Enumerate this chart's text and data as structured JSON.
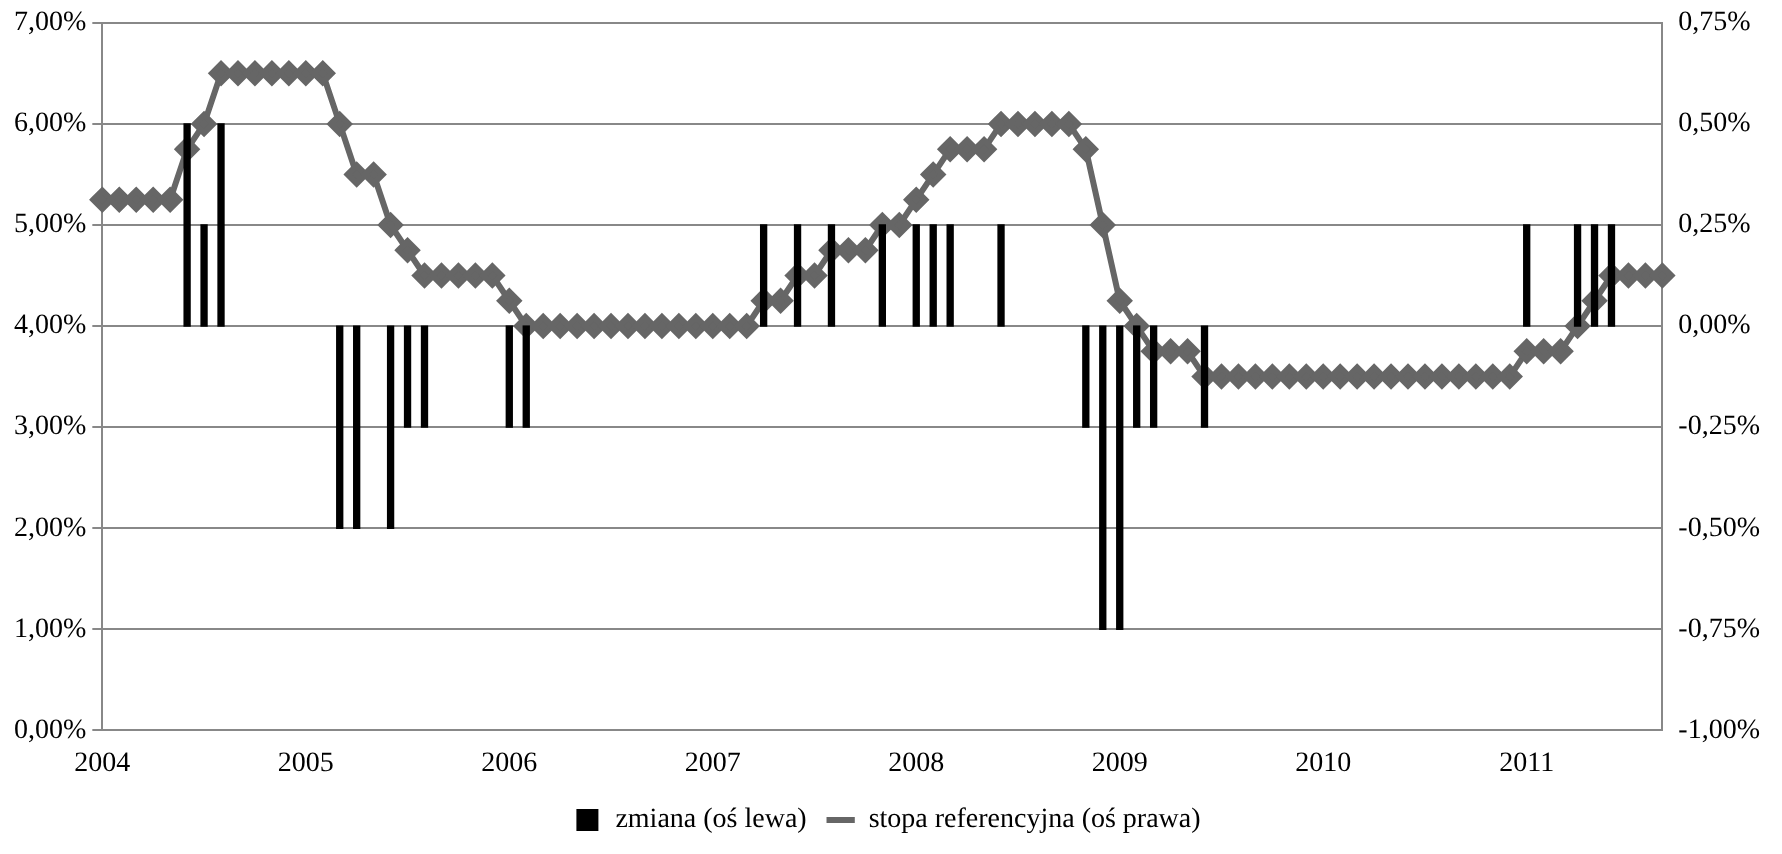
{
  "chart_data": {
    "type": "bar",
    "categories": [
      "2004",
      null,
      null,
      null,
      null,
      null,
      null,
      null,
      null,
      null,
      null,
      null,
      "2005",
      null,
      null,
      null,
      null,
      null,
      null,
      null,
      null,
      null,
      null,
      null,
      "2006",
      null,
      null,
      null,
      null,
      null,
      null,
      null,
      null,
      null,
      null,
      null,
      "2007",
      null,
      null,
      null,
      null,
      null,
      null,
      null,
      null,
      null,
      null,
      null,
      "2008",
      null,
      null,
      null,
      null,
      null,
      null,
      null,
      null,
      null,
      null,
      null,
      "2009",
      null,
      null,
      null,
      null,
      null,
      null,
      null,
      null,
      null,
      null,
      null,
      "2010",
      null,
      null,
      null,
      null,
      null,
      null,
      null,
      null,
      null,
      null,
      null,
      "2011",
      null,
      null,
      null,
      null,
      null,
      null,
      null,
      null
    ],
    "series": [
      {
        "name": "zmiana (oś lewa)",
        "axis": "y2",
        "color": "#000000",
        "values": [
          null,
          null,
          null,
          null,
          null,
          0.5,
          0.25,
          0.5,
          null,
          null,
          null,
          null,
          null,
          null,
          -0.5,
          -0.5,
          null,
          -0.5,
          -0.25,
          -0.25,
          null,
          null,
          null,
          null,
          -0.25,
          -0.25,
          null,
          null,
          null,
          null,
          null,
          null,
          null,
          null,
          null,
          null,
          null,
          null,
          null,
          0.25,
          null,
          0.25,
          null,
          0.25,
          null,
          null,
          0.25,
          null,
          0.25,
          0.25,
          0.25,
          null,
          null,
          0.25,
          null,
          null,
          null,
          null,
          -0.25,
          -0.75,
          -0.75,
          -0.25,
          -0.25,
          null,
          null,
          -0.25,
          null,
          null,
          null,
          null,
          null,
          null,
          null,
          null,
          null,
          null,
          null,
          null,
          null,
          null,
          null,
          null,
          null,
          null,
          0.25,
          null,
          null,
          0.25,
          0.25,
          0.25,
          null,
          null,
          null
        ]
      },
      {
        "name": "stopa referencyjna (oś prawa)",
        "type": "line",
        "axis": "y",
        "color": "#666666",
        "marker": "diamond",
        "values": [
          5.25,
          5.25,
          5.25,
          5.25,
          5.25,
          5.75,
          6.0,
          6.5,
          6.5,
          6.5,
          6.5,
          6.5,
          6.5,
          6.5,
          6.0,
          5.5,
          5.5,
          5.0,
          4.75,
          4.5,
          4.5,
          4.5,
          4.5,
          4.5,
          4.25,
          4.0,
          4.0,
          4.0,
          4.0,
          4.0,
          4.0,
          4.0,
          4.0,
          4.0,
          4.0,
          4.0,
          4.0,
          4.0,
          4.0,
          4.25,
          4.25,
          4.5,
          4.5,
          4.75,
          4.75,
          4.75,
          5.0,
          5.0,
          5.25,
          5.5,
          5.75,
          5.75,
          5.75,
          6.0,
          6.0,
          6.0,
          6.0,
          6.0,
          5.75,
          5.0,
          4.25,
          4.0,
          3.75,
          3.75,
          3.75,
          3.5,
          3.5,
          3.5,
          3.5,
          3.5,
          3.5,
          3.5,
          3.5,
          3.5,
          3.5,
          3.5,
          3.5,
          3.5,
          3.5,
          3.5,
          3.5,
          3.5,
          3.5,
          3.5,
          3.75,
          3.75,
          3.75,
          4.0,
          4.25,
          4.5,
          4.5,
          4.5,
          4.5
        ]
      }
    ],
    "ylim": [
      0,
      7
    ],
    "yticks": [
      {
        "value": 0,
        "label": "0,00%"
      },
      {
        "value": 1,
        "label": "1,00%"
      },
      {
        "value": 2,
        "label": "2,00%"
      },
      {
        "value": 3,
        "label": "3,00%"
      },
      {
        "value": 4,
        "label": "4,00%"
      },
      {
        "value": 5,
        "label": "5,00%"
      },
      {
        "value": 6,
        "label": "6,00%"
      },
      {
        "value": 7,
        "label": "7,00%"
      }
    ],
    "y2lim": [
      -1,
      0.75
    ],
    "y2ticks": [
      {
        "value": -1,
        "label": "-1,00%"
      },
      {
        "value": -0.75,
        "label": "-0,75%"
      },
      {
        "value": -0.5,
        "label": "-0,50%"
      },
      {
        "value": -0.25,
        "label": "-0,25%"
      },
      {
        "value": 0,
        "label": "0,00%"
      },
      {
        "value": 0.25,
        "label": "0,25%"
      },
      {
        "value": 0.5,
        "label": "0,50%"
      },
      {
        "value": 0.75,
        "label": "0,75%"
      }
    ],
    "grid": "y",
    "legend": "bottom"
  }
}
